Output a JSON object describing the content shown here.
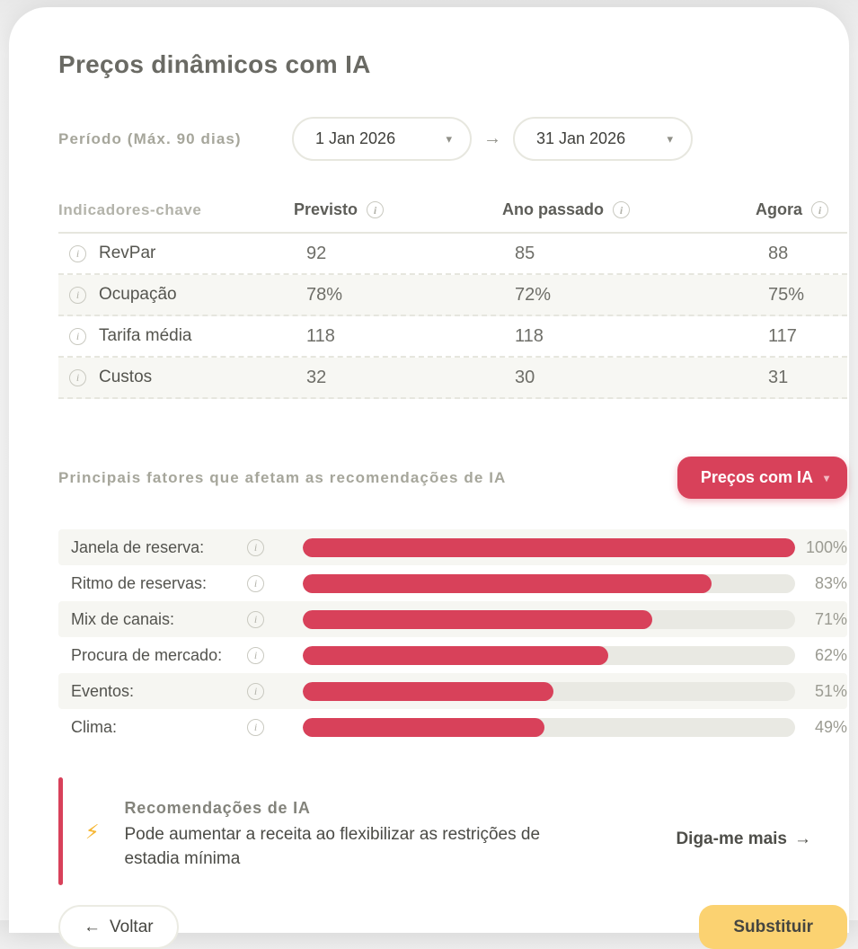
{
  "page": {
    "title": "Preços dinâmicos com IA"
  },
  "icons": {
    "caret": "▾",
    "arrow_right": "→",
    "back_arrow": "←",
    "bolt": "⚡",
    "info": "i"
  },
  "period": {
    "label": "Período (Máx. 90 dias)",
    "start_value": "1 Jan 2026",
    "end_value": "31 Jan 2026"
  },
  "indicators": {
    "header": "Indicadores-chave",
    "columns": [
      "Previsto",
      "Ano passado",
      "Agora"
    ],
    "rows": [
      {
        "label": "RevPar",
        "values": [
          "92",
          "85",
          "88"
        ]
      },
      {
        "label": "Ocupação",
        "values": [
          "78%",
          "72%",
          "75%"
        ]
      },
      {
        "label": "Tarifa média",
        "values": [
          "118",
          "118",
          "117"
        ]
      },
      {
        "label": "Custos",
        "values": [
          "32",
          "30",
          "31"
        ]
      }
    ]
  },
  "factors": {
    "title": "Principais fatores que afetam as recomendações de IA",
    "button_label": "Preços com IA",
    "items": [
      {
        "label": "Janela de reserva:",
        "percent": 100,
        "display": "100%"
      },
      {
        "label": "Ritmo de reservas:",
        "percent": 83,
        "display": "83%"
      },
      {
        "label": "Mix de canais:",
        "percent": 71,
        "display": "71%"
      },
      {
        "label": "Procura de mercado:",
        "percent": 62,
        "display": "62%"
      },
      {
        "label": "Eventos:",
        "percent": 51,
        "display": "51%"
      },
      {
        "label": "Clima:",
        "percent": 49,
        "display": "49%"
      }
    ]
  },
  "recommendation": {
    "title": "Recomendações de IA",
    "text": "Pode aumentar a receita ao flexibilizar as restrições de estadia mínima",
    "link_label": "Diga-me mais"
  },
  "footer": {
    "back_label": "Voltar",
    "replace_label": "Substituir"
  },
  "colors": {
    "accent_red": "#d8415a",
    "accent_yellow": "#fbd271"
  }
}
